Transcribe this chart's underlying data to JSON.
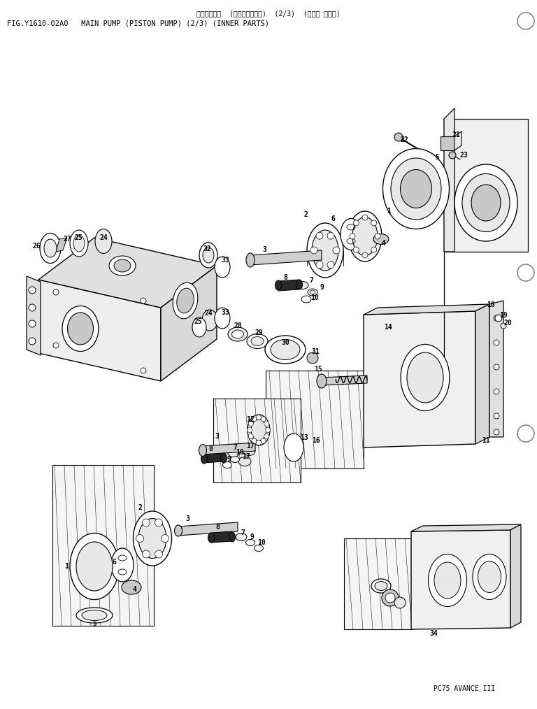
{
  "title_japanese": "メインポンプ  (ピストンポンプ)  (2/3)  (インナ パーツ)",
  "title_english": "FIG.Y1610-02A0   MAIN PUMP (PISTON PUMP) (2/3) (INNER PARTS)",
  "footer": "PC75 AVANCE III",
  "bg_color": "#ffffff",
  "fig_width": 7.68,
  "fig_height": 10.14,
  "dpi": 100
}
